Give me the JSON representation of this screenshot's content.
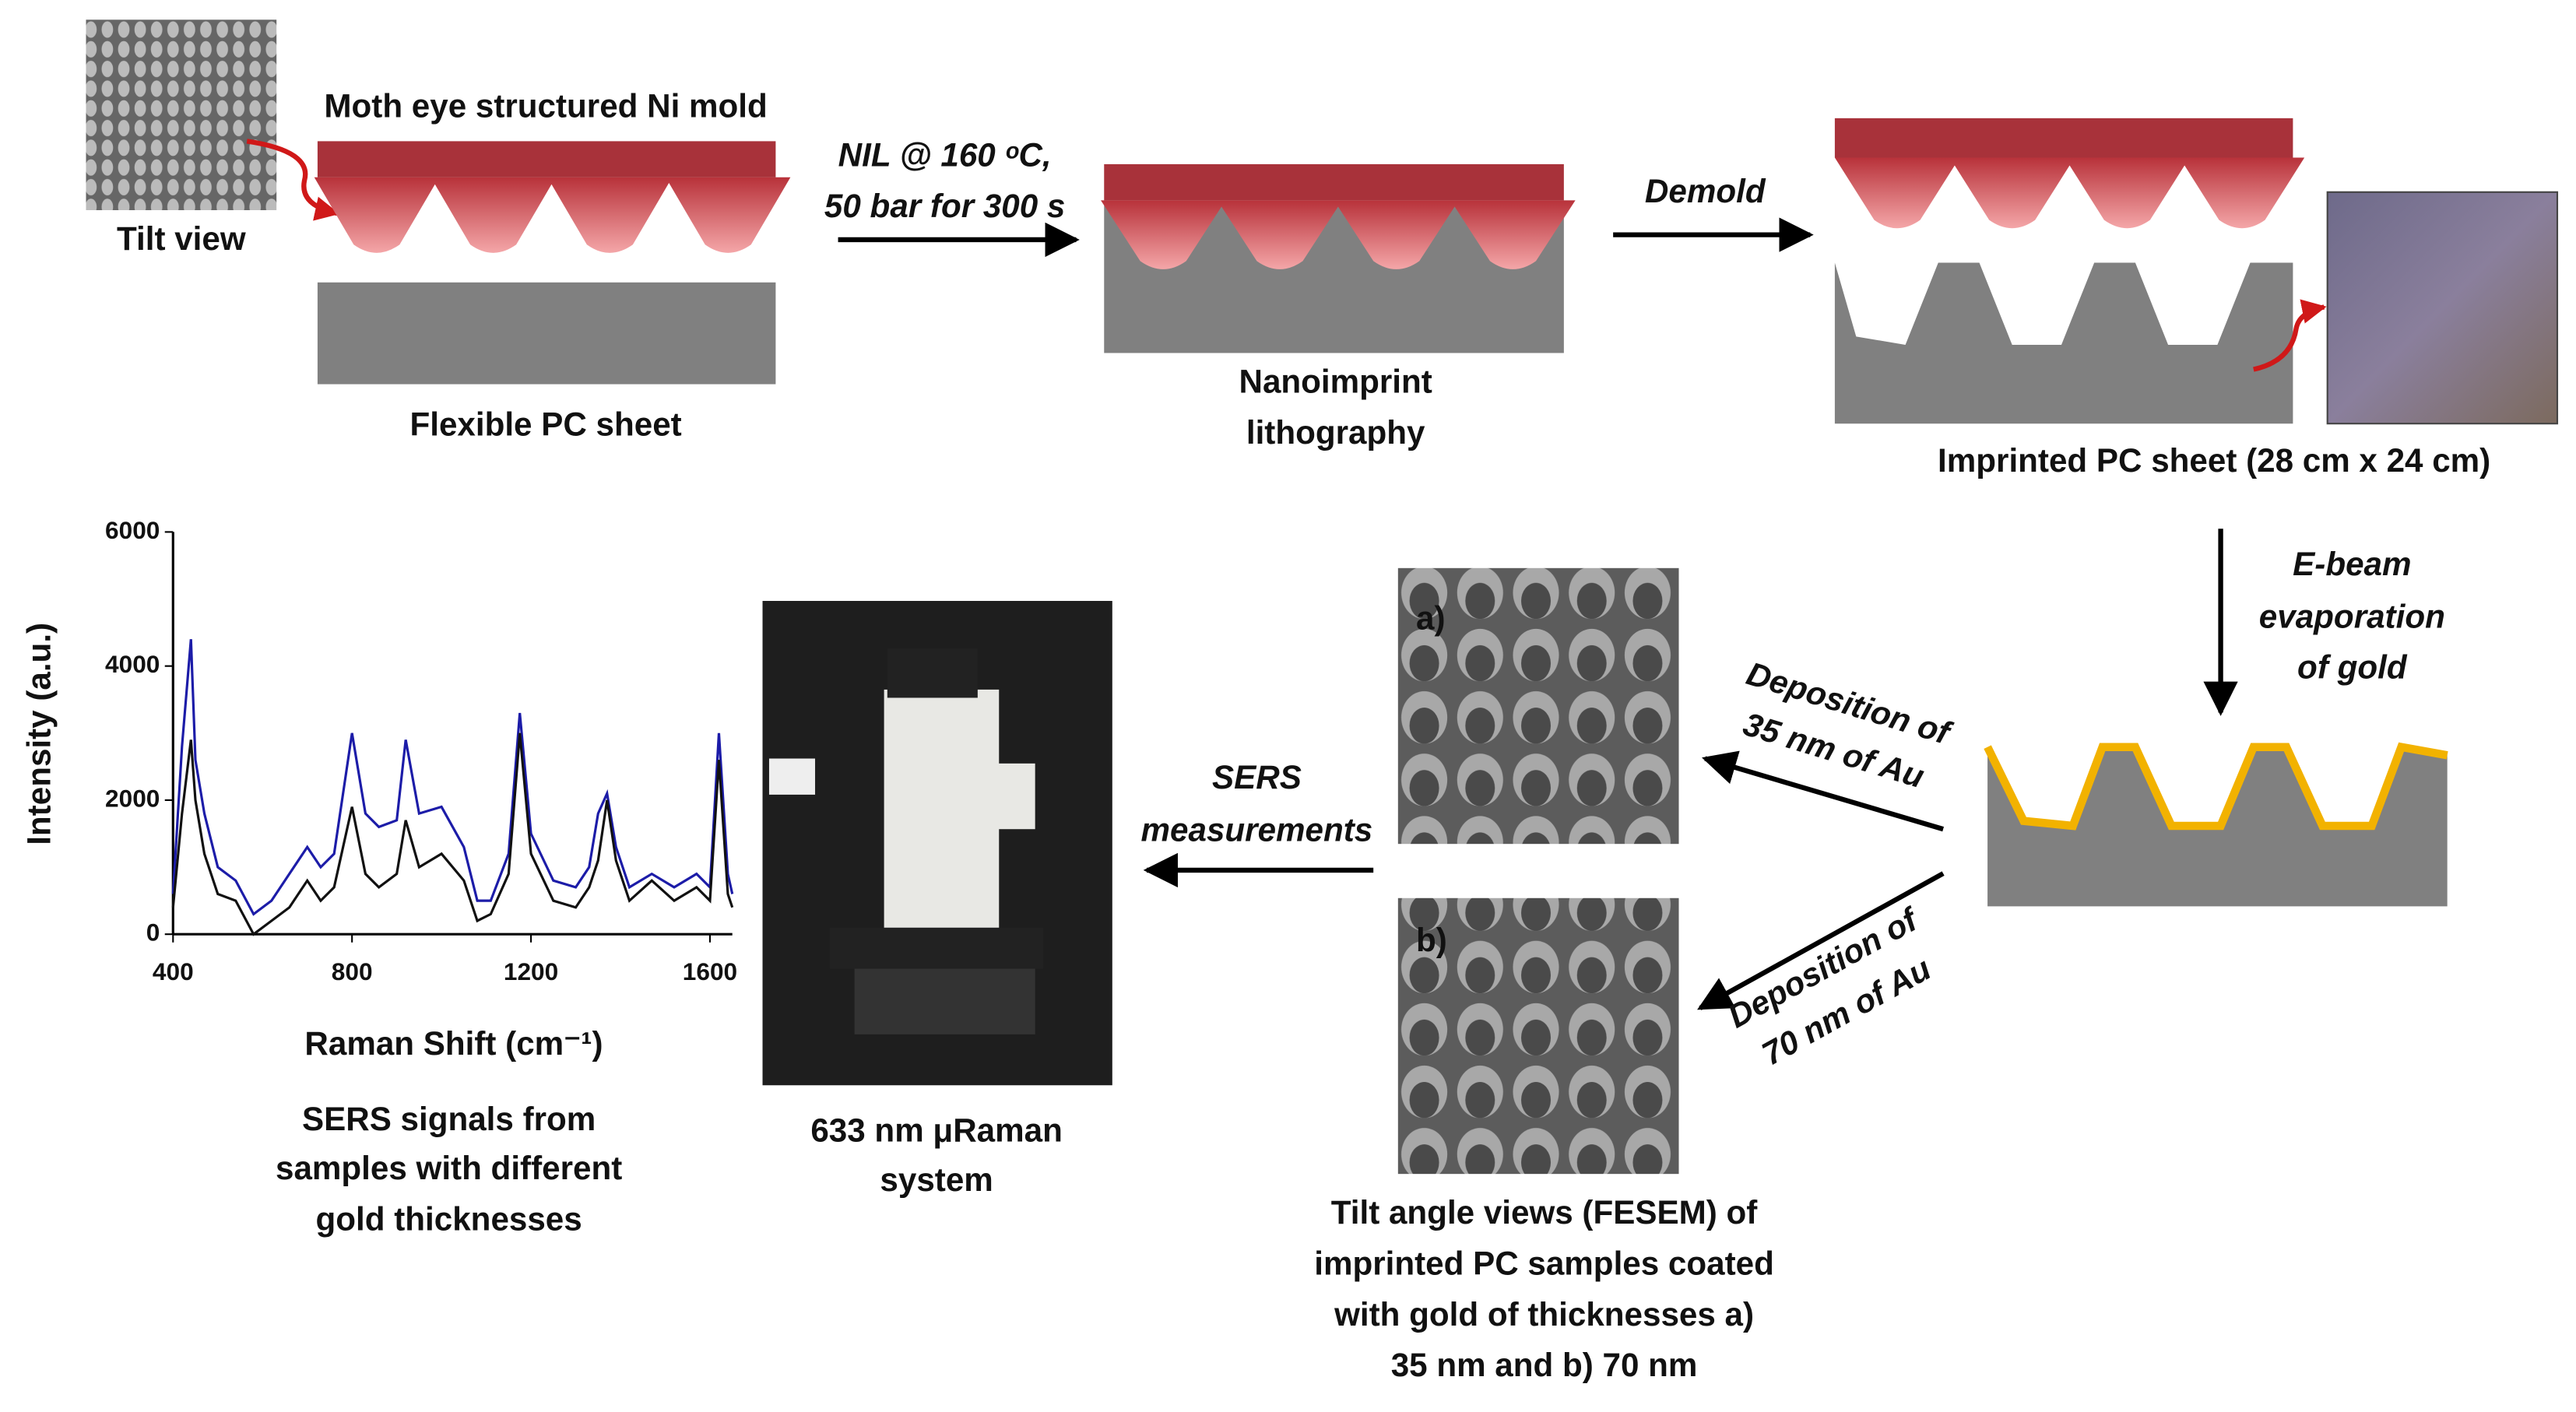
{
  "labels": {
    "tilt_view": "Tilt view",
    "mold": "Moth eye structured Ni mold",
    "flexible_sheet": "Flexible PC sheet",
    "nil_line1": "NIL @ 160 ᵒC,",
    "nil_line2": "50 bar for 300 s",
    "nanoimprint": [
      "Nanoimprint",
      "lithography"
    ],
    "demold": "Demold",
    "imprinted_sheet": "Imprinted PC sheet (28 cm x 24 cm)",
    "ebeam": [
      "E-beam",
      "evaporation",
      "of gold"
    ],
    "deposition_a": [
      "Deposition of",
      "35 nm of Au"
    ],
    "deposition_b": [
      "Deposition of",
      "70 nm of Au"
    ],
    "sem_a": "a)",
    "sem_b": "b)",
    "fesem_caption": [
      "Tilt angle views (FESEM) of",
      "imprinted PC samples coated",
      "with gold of thicknesses a)",
      "35 nm and b) 70 nm"
    ],
    "sers": [
      "SERS",
      "measurements"
    ],
    "raman_system": [
      "633 nm μRaman",
      "system"
    ],
    "sers_caption": [
      "SERS signals from",
      "samples with different",
      "gold thicknesses"
    ]
  },
  "chart_data": {
    "type": "line",
    "x_label": "Raman Shift (cm⁻¹)",
    "y_label": "Intensity (a.u.)",
    "x": [
      400,
      420,
      440,
      450,
      470,
      500,
      540,
      580,
      620,
      660,
      700,
      730,
      760,
      800,
      830,
      860,
      900,
      920,
      950,
      1000,
      1050,
      1080,
      1110,
      1150,
      1175,
      1200,
      1250,
      1300,
      1330,
      1350,
      1370,
      1390,
      1420,
      1470,
      1520,
      1570,
      1600,
      1620,
      1640,
      1650
    ],
    "series": [
      {
        "color": "#1c1ca8",
        "values": [
          600,
          2800,
          4400,
          2600,
          1800,
          1000,
          800,
          300,
          500,
          900,
          1300,
          1000,
          1200,
          3000,
          1800,
          1600,
          1700,
          2900,
          1800,
          1900,
          1300,
          500,
          500,
          1200,
          3300,
          1500,
          800,
          700,
          1000,
          1800,
          2100,
          1300,
          700,
          900,
          700,
          900,
          700,
          3000,
          900,
          600
        ]
      },
      {
        "color": "#111111",
        "values": [
          400,
          1800,
          2900,
          2000,
          1200,
          600,
          500,
          0,
          200,
          400,
          800,
          500,
          700,
          1900,
          900,
          700,
          900,
          1700,
          1000,
          1200,
          800,
          200,
          300,
          900,
          3000,
          1200,
          500,
          400,
          700,
          1100,
          2000,
          1100,
          500,
          800,
          500,
          700,
          500,
          2600,
          600,
          400
        ]
      }
    ],
    "xlim": [
      400,
      1650
    ],
    "ylim": [
      0,
      6000
    ],
    "xticks": [
      400,
      800,
      1200,
      1600
    ],
    "yticks": [
      0,
      2000,
      4000,
      6000
    ]
  }
}
